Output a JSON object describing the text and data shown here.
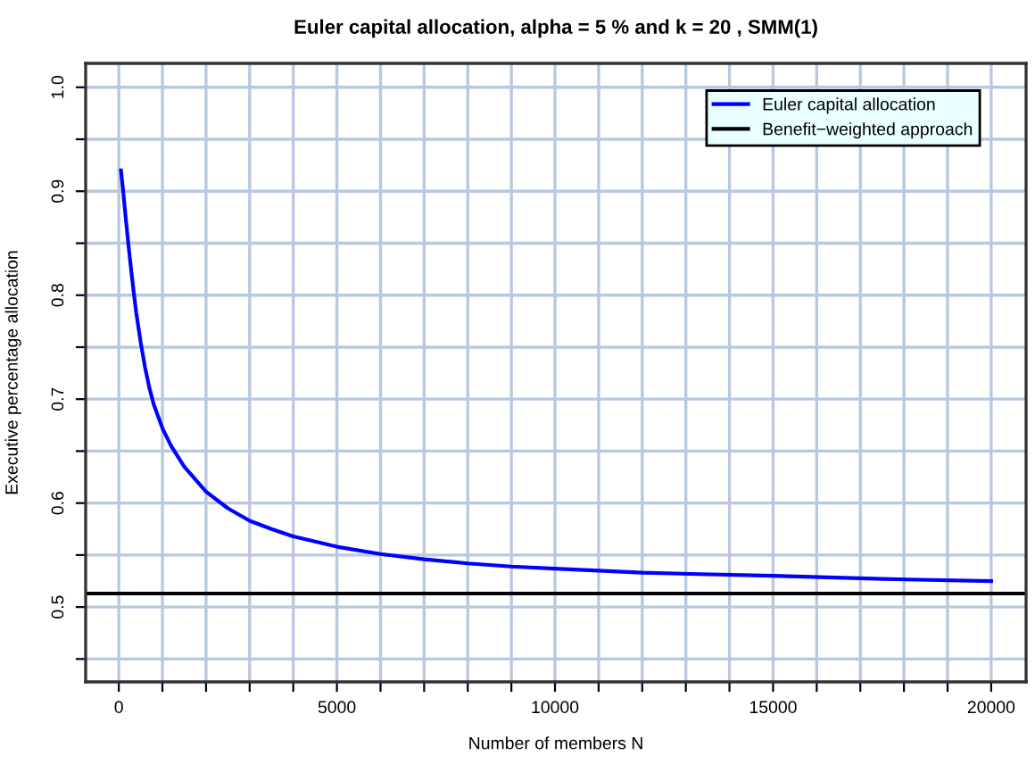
{
  "chart_data": {
    "type": "line",
    "title": "Euler capital allocation, alpha = 5 % and k = 20 , SMM(1)",
    "xlabel": "Number of members N",
    "ylabel": "Executive percentage allocation",
    "series": [
      {
        "name": "Euler capital allocation",
        "color": "#0000ff",
        "x": [
          50,
          100,
          150,
          200,
          250,
          300,
          350,
          400,
          500,
          600,
          700,
          800,
          1000,
          1200,
          1500,
          2000,
          2500,
          3000,
          3500,
          4000,
          5000,
          6000,
          7000,
          8000,
          9000,
          10000,
          12000,
          15000,
          17500,
          20000
        ],
        "values": [
          0.92,
          0.9,
          0.878,
          0.857,
          0.837,
          0.818,
          0.8,
          0.783,
          0.755,
          0.731,
          0.711,
          0.695,
          0.672,
          0.655,
          0.635,
          0.611,
          0.595,
          0.583,
          0.575,
          0.568,
          0.558,
          0.551,
          0.546,
          0.542,
          0.539,
          0.537,
          0.533,
          0.53,
          0.527,
          0.525
        ]
      }
    ],
    "ref_lines": [
      {
        "axis": "y",
        "value": 0.513,
        "label": "Benefit−weighted approach",
        "color": "#000000"
      }
    ],
    "xlim": [
      -760,
      20800
    ],
    "ylim": [
      0.428,
      1.023
    ],
    "xticks": [
      0,
      {
        "value": 1000,
        "label": null
      },
      {
        "value": 2000,
        "label": null
      },
      {
        "value": 3000,
        "label": null
      },
      {
        "value": 4000,
        "label": null
      },
      5000,
      {
        "value": 6000,
        "label": null
      },
      {
        "value": 7000,
        "label": null
      },
      {
        "value": 8000,
        "label": null
      },
      {
        "value": 9000,
        "label": null
      },
      10000,
      {
        "value": 11000,
        "label": null
      },
      {
        "value": 12000,
        "label": null
      },
      {
        "value": 13000,
        "label": null
      },
      {
        "value": 14000,
        "label": null
      },
      15000,
      {
        "value": 16000,
        "label": null
      },
      {
        "value": 17000,
        "label": null
      },
      {
        "value": 18000,
        "label": null
      },
      {
        "value": 19000,
        "label": null
      },
      20000
    ],
    "yticks": [
      {
        "value": 0.45,
        "label": null
      },
      {
        "value": 0.5,
        "label": "0.5"
      },
      {
        "value": 0.55,
        "label": null
      },
      {
        "value": 0.6,
        "label": "0.6"
      },
      {
        "value": 0.65,
        "label": null
      },
      {
        "value": 0.7,
        "label": "0.7"
      },
      {
        "value": 0.75,
        "label": null
      },
      {
        "value": 0.8,
        "label": "0.8"
      },
      {
        "value": 0.85,
        "label": null
      },
      {
        "value": 0.9,
        "label": "0.9"
      },
      {
        "value": 0.95,
        "label": null
      },
      {
        "value": 1.0,
        "label": "1.0"
      }
    ],
    "grid": true,
    "legend": "top right",
    "marker": "none",
    "line_style": "solid"
  }
}
